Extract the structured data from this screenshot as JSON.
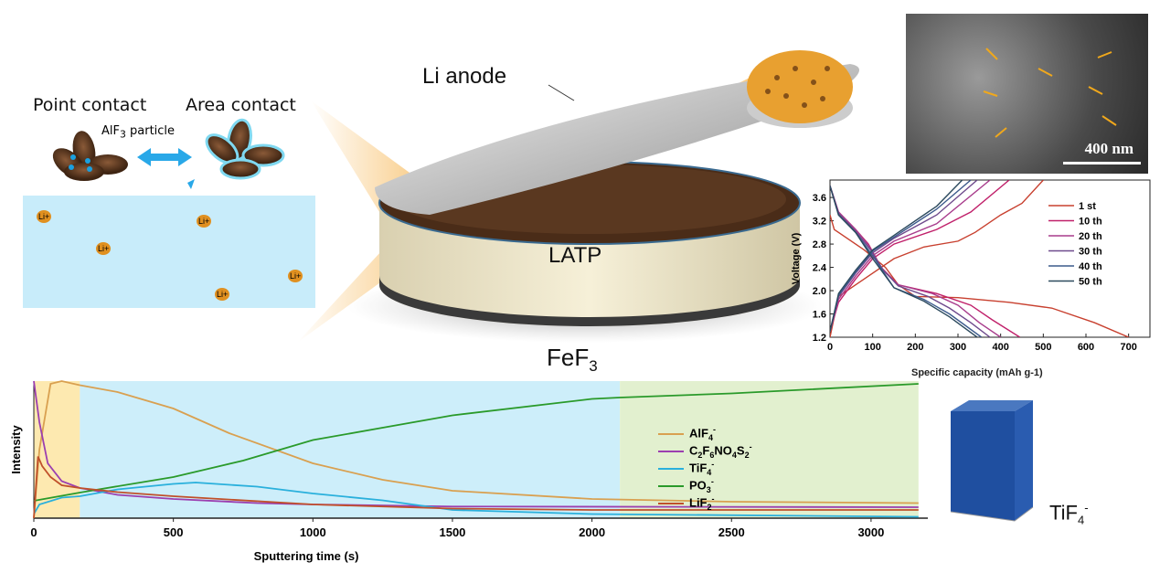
{
  "schematic": {
    "point_contact": "Point contact",
    "area_contact": "Area contact",
    "particle_label": "AlF",
    "particle_sub": "3",
    "particle_tail": " particle",
    "li_ion": "Li+",
    "li_anode": "Li anode",
    "electrolyte": "LATP",
    "cathode": "FeF",
    "cathode_sub": "3"
  },
  "sem": {
    "scale_bar": "400 nm",
    "arrow_color": "#f0a81c"
  },
  "tof_sims_3d": {
    "label": "TiF",
    "sub": "4",
    "sup": "-",
    "color": "#1f4fa0"
  },
  "chart_data": [
    {
      "type": "line",
      "title": "",
      "xlabel": "Specific capacity (mAh g-1)",
      "xlabel_main": "Specific capacity (mAh g",
      "xlabel_sup": "-1",
      "xlabel_end": ")",
      "ylabel": "Voltage (V)",
      "xlim": [
        0,
        750
      ],
      "ylim": [
        1.2,
        3.9
      ],
      "xticks": [
        "0",
        "100",
        "200",
        "300",
        "400",
        "500",
        "600",
        "700"
      ],
      "yticks": [
        "1.2",
        "1.6",
        "2.0",
        "2.4",
        "2.8",
        "3.2",
        "3.6"
      ],
      "legend_position": "top-right",
      "series": [
        {
          "name": "1 st",
          "color": "#c8402f",
          "discharge": [
            [
              0,
              3.3
            ],
            [
              10,
              3.05
            ],
            [
              80,
              2.7
            ],
            [
              130,
              2.4
            ],
            [
              160,
              2.1
            ],
            [
              200,
              1.9
            ],
            [
              300,
              1.88
            ],
            [
              420,
              1.8
            ],
            [
              520,
              1.7
            ],
            [
              620,
              1.45
            ],
            [
              700,
              1.2
            ]
          ],
          "charge": [
            [
              0,
              1.2
            ],
            [
              20,
              1.9
            ],
            [
              80,
              2.2
            ],
            [
              150,
              2.55
            ],
            [
              220,
              2.75
            ],
            [
              300,
              2.85
            ],
            [
              340,
              3.0
            ],
            [
              400,
              3.3
            ],
            [
              450,
              3.5
            ],
            [
              500,
              3.9
            ]
          ]
        },
        {
          "name": "10 th",
          "color": "#c0206a",
          "discharge": [
            [
              0,
              3.8
            ],
            [
              20,
              3.35
            ],
            [
              60,
              3.05
            ],
            [
              90,
              2.8
            ],
            [
              120,
              2.4
            ],
            [
              160,
              2.1
            ],
            [
              250,
              1.95
            ],
            [
              330,
              1.75
            ],
            [
              380,
              1.5
            ],
            [
              445,
              1.2
            ]
          ],
          "charge": [
            [
              0,
              1.3
            ],
            [
              20,
              1.8
            ],
            [
              60,
              2.2
            ],
            [
              100,
              2.55
            ],
            [
              150,
              2.8
            ],
            [
              250,
              3.05
            ],
            [
              330,
              3.35
            ],
            [
              420,
              3.9
            ]
          ]
        },
        {
          "name": "20 th",
          "color": "#a83c8c",
          "discharge": [
            [
              0,
              3.8
            ],
            [
              20,
              3.35
            ],
            [
              60,
              3.05
            ],
            [
              90,
              2.78
            ],
            [
              120,
              2.38
            ],
            [
              160,
              2.1
            ],
            [
              240,
              1.95
            ],
            [
              300,
              1.75
            ],
            [
              350,
              1.45
            ],
            [
              400,
              1.2
            ]
          ],
          "charge": [
            [
              0,
              1.3
            ],
            [
              20,
              1.85
            ],
            [
              60,
              2.25
            ],
            [
              100,
              2.6
            ],
            [
              150,
              2.85
            ],
            [
              250,
              3.15
            ],
            [
              375,
              3.9
            ]
          ]
        },
        {
          "name": "30 th",
          "color": "#6e4a8c",
          "discharge": [
            [
              0,
              3.8
            ],
            [
              20,
              3.33
            ],
            [
              60,
              3.02
            ],
            [
              95,
              2.7
            ],
            [
              125,
              2.35
            ],
            [
              160,
              2.08
            ],
            [
              230,
              1.9
            ],
            [
              280,
              1.7
            ],
            [
              330,
              1.45
            ],
            [
              375,
              1.2
            ]
          ],
          "charge": [
            [
              0,
              1.3
            ],
            [
              20,
              1.9
            ],
            [
              60,
              2.3
            ],
            [
              100,
              2.65
            ],
            [
              150,
              2.9
            ],
            [
              250,
              3.3
            ],
            [
              345,
              3.9
            ]
          ]
        },
        {
          "name": "40 th",
          "color": "#3c5a8c",
          "discharge": [
            [
              0,
              3.8
            ],
            [
              20,
              3.3
            ],
            [
              60,
              3.0
            ],
            [
              100,
              2.6
            ],
            [
              150,
              2.05
            ],
            [
              220,
              1.85
            ],
            [
              280,
              1.6
            ],
            [
              355,
              1.2
            ]
          ],
          "charge": [
            [
              0,
              1.3
            ],
            [
              20,
              1.92
            ],
            [
              60,
              2.32
            ],
            [
              100,
              2.68
            ],
            [
              150,
              2.92
            ],
            [
              250,
              3.4
            ],
            [
              330,
              3.9
            ]
          ]
        },
        {
          "name": "50 th",
          "color": "#2c4a5e",
          "discharge": [
            [
              0,
              3.8
            ],
            [
              20,
              3.3
            ],
            [
              60,
              3.0
            ],
            [
              100,
              2.55
            ],
            [
              150,
              2.05
            ],
            [
              220,
              1.82
            ],
            [
              280,
              1.55
            ],
            [
              345,
              1.2
            ]
          ],
          "charge": [
            [
              0,
              1.3
            ],
            [
              20,
              1.95
            ],
            [
              60,
              2.35
            ],
            [
              100,
              2.7
            ],
            [
              150,
              2.95
            ],
            [
              250,
              3.45
            ],
            [
              310,
              3.9
            ]
          ]
        }
      ]
    },
    {
      "type": "line",
      "title": "",
      "xlabel": "Sputtering time (s)",
      "ylabel": "Intensity",
      "xlim": [
        0,
        3200
      ],
      "ylim": [
        0,
        100
      ],
      "xticks": [
        "0",
        "500",
        "1000",
        "1500",
        "2000",
        "2500",
        "3000"
      ],
      "legend_position": "center-right",
      "regions": [
        {
          "from": 0,
          "to": 165,
          "color": "#fde9b0"
        },
        {
          "from": 165,
          "to": 2100,
          "color": "#cdeefa"
        },
        {
          "from": 2100,
          "to": 3170,
          "color": "#e2f0cf"
        }
      ],
      "series": [
        {
          "name": "AlF4-",
          "main": "AlF",
          "sub": "4",
          "sup": "-",
          "color": "#d9a050",
          "points": [
            [
              0,
              0
            ],
            [
              20,
              50
            ],
            [
              60,
              98
            ],
            [
              100,
              100
            ],
            [
              165,
              97
            ],
            [
              300,
              92
            ],
            [
              500,
              80
            ],
            [
              700,
              62
            ],
            [
              1000,
              40
            ],
            [
              1250,
              28
            ],
            [
              1500,
              20
            ],
            [
              2000,
              14
            ],
            [
              2500,
              12
            ],
            [
              3170,
              11
            ]
          ]
        },
        {
          "name": "C2F6NO4S2-",
          "main": "C",
          "sub": "2",
          "main2": "F",
          "sub2": "6",
          "main3": "NO",
          "sub3": "4",
          "main4": "S",
          "sub4": "2",
          "sup": "-",
          "color": "#9b3fb0",
          "points": [
            [
              0,
              100
            ],
            [
              20,
              70
            ],
            [
              50,
              40
            ],
            [
              100,
              27
            ],
            [
              165,
              22
            ],
            [
              300,
              17
            ],
            [
              500,
              14
            ],
            [
              800,
              11
            ],
            [
              1000,
              10
            ],
            [
              1500,
              8.5
            ],
            [
              3170,
              8
            ]
          ]
        },
        {
          "name": "TiF4-",
          "main": "TiF",
          "sub": "4",
          "sup": "-",
          "color": "#2ab0dc",
          "points": [
            [
              0,
              3
            ],
            [
              20,
              10
            ],
            [
              100,
              15
            ],
            [
              165,
              16
            ],
            [
              300,
              21
            ],
            [
              500,
              25
            ],
            [
              580,
              26
            ],
            [
              800,
              23
            ],
            [
              1000,
              18
            ],
            [
              1250,
              13
            ],
            [
              1500,
              6
            ],
            [
              2000,
              3
            ],
            [
              3170,
              1
            ]
          ]
        },
        {
          "name": "PO3-",
          "main": "PO",
          "sub": "3",
          "sup": "-",
          "color": "#2a9a2a",
          "points": [
            [
              0,
              12.7
            ],
            [
              165,
              18.7
            ],
            [
              500,
              30
            ],
            [
              750,
              42
            ],
            [
              1000,
              57
            ],
            [
              1250,
              66
            ],
            [
              1500,
              75
            ],
            [
              2000,
              87
            ],
            [
              2100,
              88
            ],
            [
              2500,
              91
            ],
            [
              3170,
              98
            ]
          ]
        },
        {
          "name": "LiF2-",
          "main": "LiF",
          "sub": "2",
          "sup": "-",
          "color": "#c0502a",
          "points": [
            [
              0,
              0
            ],
            [
              15,
              45
            ],
            [
              30,
              38
            ],
            [
              60,
              30
            ],
            [
              100,
              24
            ],
            [
              165,
              22
            ],
            [
              300,
              19
            ],
            [
              500,
              16
            ],
            [
              1000,
              10
            ],
            [
              1500,
              7
            ],
            [
              2000,
              6
            ],
            [
              3170,
              6
            ]
          ]
        }
      ]
    }
  ]
}
